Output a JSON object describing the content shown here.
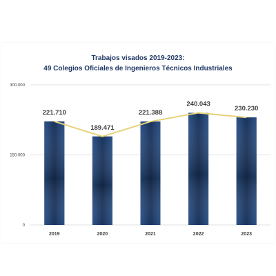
{
  "chart_data": {
    "type": "bar",
    "title": "Trabajos visados 2019-2023:",
    "subtitle": "49 Colegios Oficiales de Ingenieros Técnicos Industriales",
    "categories": [
      "2019",
      "2020",
      "2021",
      "2022",
      "2023"
    ],
    "values": [
      221710,
      189471,
      221388,
      240043,
      230230
    ],
    "data_labels": [
      "221.710",
      "189.471",
      "221.388",
      "240.043",
      "230.230"
    ],
    "y_ticks": [
      0,
      150000,
      300000
    ],
    "y_tick_labels": [
      "0",
      "150.000",
      "300.000"
    ],
    "ylim": [
      0,
      300000
    ],
    "overlay": {
      "type": "line",
      "color": "#e6d27a"
    },
    "bar_color": "#1f3f6e",
    "grid": true
  }
}
